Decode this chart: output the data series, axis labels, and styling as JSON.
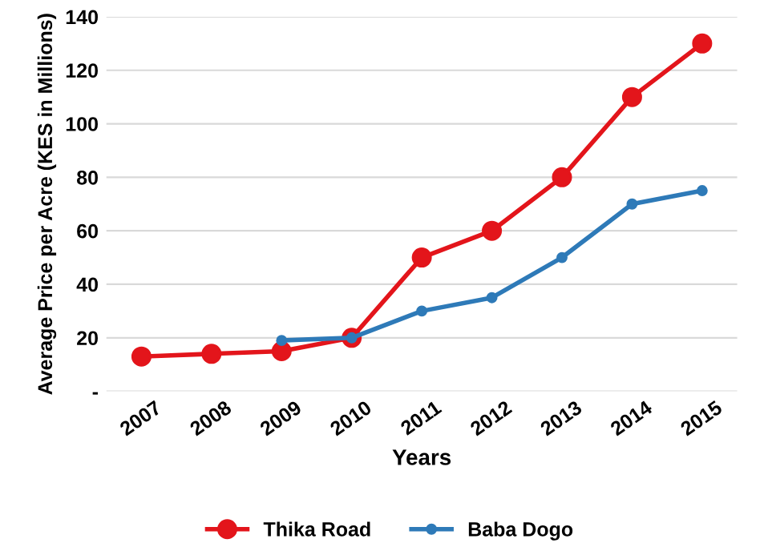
{
  "chart_data": {
    "type": "line",
    "xlabel": "Years",
    "ylabel": "Average Price per Acre (KES in Millions)",
    "categories": [
      "2007",
      "2008",
      "2009",
      "2010",
      "2011",
      "2012",
      "2013",
      "2014",
      "2015"
    ],
    "series": [
      {
        "name": "Thika Road",
        "color": "#e3151b",
        "values": [
          13,
          14,
          15,
          20,
          50,
          60,
          80,
          110,
          130
        ]
      },
      {
        "name": "Baba Dogo",
        "color": "#2e7ab8",
        "values": [
          null,
          null,
          19,
          20,
          30,
          35,
          50,
          70,
          75
        ]
      }
    ],
    "ylim": [
      0,
      140
    ],
    "yticks": [
      {
        "value": 0,
        "label": "-"
      },
      20,
      40,
      60,
      80,
      100,
      120,
      140
    ],
    "grid": "y",
    "legend": "bottom",
    "marker": "circle",
    "line_style": "solid"
  }
}
